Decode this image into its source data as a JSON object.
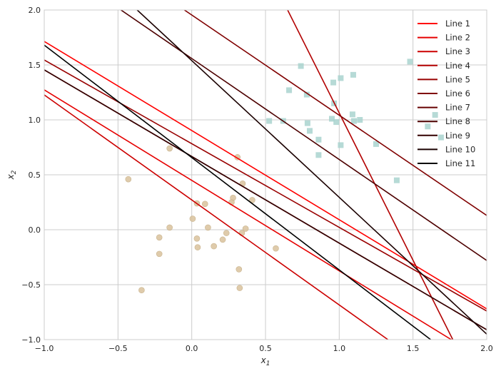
{
  "chart_data": {
    "type": "scatter",
    "title": "",
    "xlabel": "x1",
    "ylabel": "x2",
    "xlim": [
      -1.0,
      2.0
    ],
    "ylim": [
      -1.0,
      2.0
    ],
    "xticks": [
      "−1.0",
      "−0.5",
      "0.0",
      "0.5",
      "1.0",
      "1.5",
      "2.0"
    ],
    "yticks": [
      "−1.0",
      "−0.5",
      "0.0",
      "0.5",
      "1.0",
      "1.5",
      "2.0"
    ],
    "grid": true,
    "legend_position": "top-right",
    "points_class_0": {
      "marker": "circle",
      "color": "#d9c29c",
      "x": [
        -0.43,
        -0.15,
        0.31,
        0.345,
        0.28,
        0.27,
        0.41,
        0.035,
        0.09,
        0.006,
        -0.15,
        0.11,
        0.235,
        0.34,
        0.365,
        -0.22,
        0.035,
        0.21,
        0.04,
        0.15,
        -0.22,
        0.57,
        0.32,
        0.325,
        -0.34
      ],
      "y": [
        0.46,
        0.74,
        0.66,
        0.42,
        0.29,
        0.25,
        0.27,
        0.24,
        0.235,
        0.1,
        0.02,
        0.02,
        -0.03,
        -0.03,
        0.01,
        -0.07,
        -0.08,
        -0.09,
        -0.16,
        -0.15,
        -0.22,
        -0.17,
        -0.36,
        -0.53,
        -0.55
      ]
    },
    "points_class_1": {
      "marker": "square",
      "color": "#a9d3cf",
      "x": [
        0.74,
        1.48,
        1.095,
        1.01,
        0.96,
        0.66,
        0.78,
        0.965,
        1.09,
        1.65,
        0.95,
        0.525,
        0.62,
        0.98,
        1.1,
        1.14,
        0.785,
        1.6,
        0.8,
        1.69,
        0.86,
        1.01,
        1.25,
        0.86,
        1.39
      ],
      "y": [
        1.49,
        1.53,
        1.41,
        1.38,
        1.34,
        1.27,
        1.23,
        1.15,
        1.05,
        1.045,
        1.01,
        0.99,
        0.99,
        0.98,
        0.99,
        1.0,
        0.97,
        0.94,
        0.9,
        0.84,
        0.82,
        0.77,
        0.78,
        0.68,
        0.45
      ]
    },
    "series": [
      {
        "name": "Line 1",
        "color": "#ff0000",
        "x": [
          -1.0,
          2.0
        ],
        "y": [
          1.714,
          -0.72
        ]
      },
      {
        "name": "Line 2",
        "color": "#e60000",
        "x": [
          -1.0,
          1.76
        ],
        "y": [
          1.273,
          -1.0
        ]
      },
      {
        "name": "Line 3",
        "color": "#cc0000",
        "x": [
          -1.0,
          1.33
        ],
        "y": [
          1.227,
          -1.0
        ]
      },
      {
        "name": "Line 4",
        "color": "#b30000",
        "x": [
          0.65,
          1.77
        ],
        "y": [
          2.0,
          -1.0
        ]
      },
      {
        "name": "Line 5",
        "color": "#990000",
        "x": [
          -1.0,
          2.0
        ],
        "y": [
          1.545,
          -0.74
        ]
      },
      {
        "name": "Line 6",
        "color": "#800000",
        "x": [
          -0.05,
          2.0
        ],
        "y": [
          2.0,
          0.13
        ]
      },
      {
        "name": "Line 7",
        "color": "#660000",
        "x": [
          -1.0,
          2.0
        ],
        "y": [
          1.455,
          -0.91
        ]
      },
      {
        "name": "Line 8",
        "color": "#4d0000",
        "x": [
          -0.48,
          2.0
        ],
        "y": [
          2.0,
          -0.28
        ]
      },
      {
        "name": "Line 9",
        "color": "#330000",
        "x": [
          -1.0,
          2.0
        ],
        "y": [
          1.455,
          -0.91
        ]
      },
      {
        "name": "Line 10",
        "color": "#1a0000",
        "x": [
          -0.37,
          2.0
        ],
        "y": [
          2.0,
          -0.95
        ]
      },
      {
        "name": "Line 11",
        "color": "#000000",
        "x": [
          -1.0,
          1.62
        ],
        "y": [
          1.68,
          -1.0
        ]
      }
    ]
  }
}
